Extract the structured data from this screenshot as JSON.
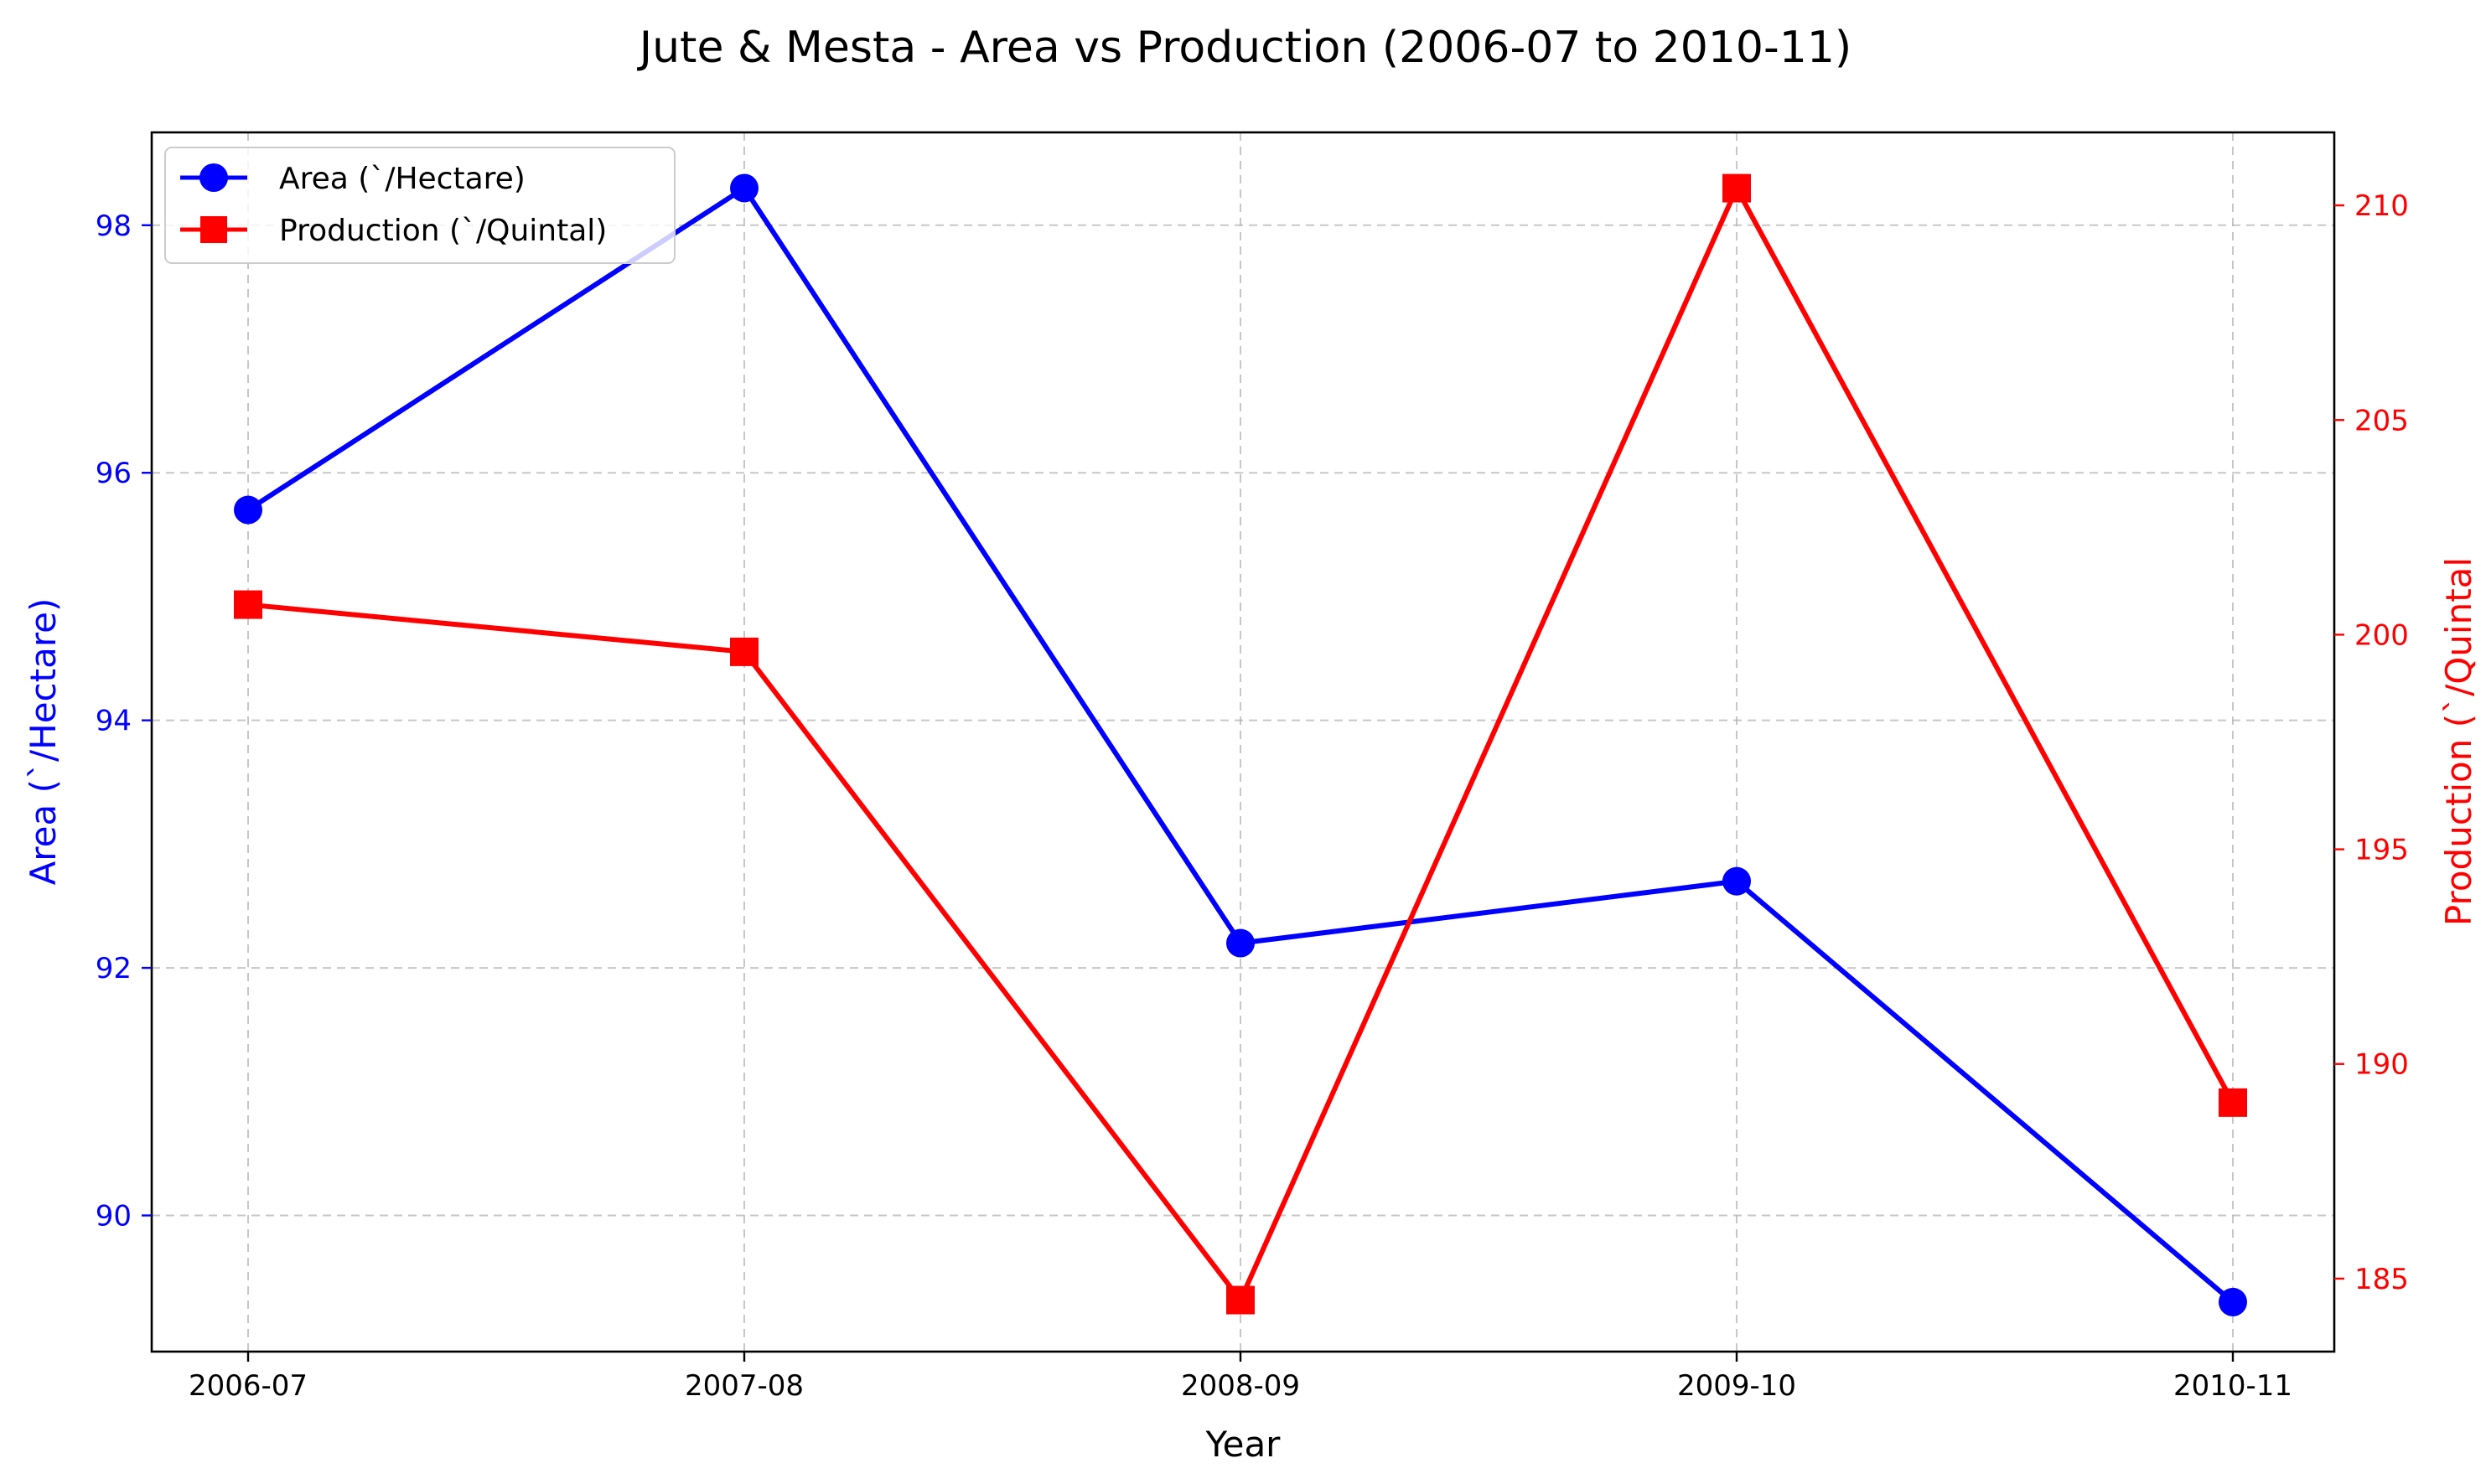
{
  "chart_data": {
    "type": "line",
    "title": "Jute & Mesta - Area vs Production (2006-07 to 2010-11)",
    "xlabel": "Year",
    "ylabel_left": "Area (`/Hectare)",
    "ylabel_right": "Production (`/Quintal",
    "categories": [
      "2006-07",
      "2007-08",
      "2008-09",
      "2009-10",
      "2010-11"
    ],
    "grid": true,
    "legend_position": "top-left",
    "y_left": {
      "ylim": [
        88.9,
        98.75
      ],
      "ticks": [
        90,
        92,
        94,
        96,
        98
      ],
      "color": "#0000ff"
    },
    "y_right": {
      "ylim": [
        183.3,
        211.7
      ],
      "ticks": [
        185,
        190,
        195,
        200,
        205,
        210
      ],
      "color": "#ff0000"
    },
    "series": [
      {
        "name": "Area (`/Hectare)",
        "axis": "left",
        "color": "#0000ff",
        "marker": "circle",
        "values": [
          95.7,
          98.3,
          92.2,
          92.7,
          89.3
        ]
      },
      {
        "name": "Production (`/Quintal)",
        "axis": "right",
        "color": "#ff0000",
        "marker": "square",
        "values": [
          200.7,
          199.6,
          184.5,
          210.4,
          189.1
        ]
      }
    ]
  }
}
